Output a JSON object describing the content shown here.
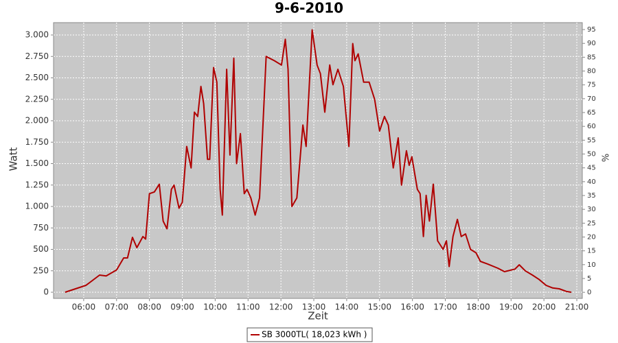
{
  "chart_data": {
    "type": "line",
    "title": "9-6-2010",
    "x_label": "Zeit",
    "y_label": "Watt",
    "y2_label": "%",
    "legend": "bottom",
    "x": [
      "05:26",
      "05:45",
      "06:04",
      "06:29",
      "06:41",
      "07:00",
      "07:13",
      "07:20",
      "07:29",
      "07:37",
      "07:48",
      "07:53",
      "08:00",
      "08:09",
      "08:18",
      "08:25",
      "08:32",
      "08:40",
      "08:45",
      "08:54",
      "09:00",
      "09:08",
      "09:16",
      "09:22",
      "09:28",
      "09:34",
      "09:39",
      "09:46",
      "09:50",
      "09:57",
      "10:03",
      "10:09",
      "10:13",
      "10:21",
      "10:27",
      "10:34",
      "10:39",
      "10:46",
      "10:53",
      "10:58",
      "11:05",
      "11:13",
      "11:21",
      "11:33",
      "11:48",
      "12:01",
      "12:08",
      "12:13",
      "12:20",
      "12:29",
      "12:40",
      "12:46",
      "12:57",
      "13:06",
      "13:12",
      "13:20",
      "13:29",
      "13:35",
      "13:44",
      "13:54",
      "14:04",
      "14:11",
      "14:15",
      "14:21",
      "14:31",
      "14:41",
      "14:51",
      "15:00",
      "15:09",
      "15:16",
      "15:25",
      "15:34",
      "15:40",
      "15:49",
      "15:54",
      "15:59",
      "16:09",
      "16:14",
      "16:20",
      "16:25",
      "16:31",
      "16:38",
      "16:46",
      "16:56",
      "17:02",
      "17:07",
      "17:14",
      "17:22",
      "17:29",
      "17:37",
      "17:46",
      "17:56",
      "18:04",
      "18:17",
      "18:36",
      "18:48",
      "19:07",
      "19:15",
      "19:26",
      "19:39",
      "19:51",
      "20:04",
      "20:16",
      "20:28",
      "20:41",
      "20:50"
    ],
    "series": [
      {
        "name": "SB 3000TL( 18,023 kWh )",
        "color": "#b00000",
        "values": [
          0,
          40,
          80,
          200,
          190,
          260,
          400,
          400,
          640,
          520,
          650,
          620,
          1150,
          1170,
          1260,
          830,
          740,
          1200,
          1250,
          980,
          1050,
          1700,
          1450,
          2100,
          2050,
          2400,
          2200,
          1550,
          1550,
          2620,
          2450,
          1200,
          900,
          2600,
          1600,
          2730,
          1500,
          1850,
          1150,
          1200,
          1100,
          900,
          1100,
          2750,
          2700,
          2650,
          2950,
          2600,
          1000,
          1100,
          1950,
          1700,
          3060,
          2650,
          2550,
          2100,
          2650,
          2420,
          2600,
          2400,
          1700,
          2900,
          2700,
          2780,
          2450,
          2450,
          2250,
          1880,
          2050,
          1950,
          1450,
          1800,
          1250,
          1650,
          1480,
          1580,
          1200,
          1150,
          650,
          1130,
          830,
          1260,
          600,
          500,
          600,
          300,
          650,
          850,
          650,
          680,
          500,
          460,
          360,
          330,
          280,
          240,
          270,
          320,
          250,
          200,
          150,
          80,
          50,
          40,
          10,
          0
        ]
      }
    ],
    "xlim": [
      "05:05",
      "21:10"
    ],
    "xticks": [
      "06:00",
      "07:00",
      "08:00",
      "09:00",
      "10:00",
      "11:00",
      "12:00",
      "13:00",
      "14:00",
      "15:00",
      "16:00",
      "17:00",
      "18:00",
      "19:00",
      "20:00",
      "21:00"
    ],
    "ylim": [
      -72,
      3144
    ],
    "yticks": [
      0,
      250,
      500,
      750,
      {
        "value": 1000,
        "label": "1.000"
      },
      {
        "value": 1250,
        "label": "1.250"
      },
      {
        "value": 1500,
        "label": "1.500"
      },
      {
        "value": 1750,
        "label": "1.750"
      },
      {
        "value": 2000,
        "label": "2.000"
      },
      {
        "value": 2250,
        "label": "2.250"
      },
      {
        "value": 2500,
        "label": "2.500"
      },
      {
        "value": 2750,
        "label": "2.750"
      },
      {
        "value": 3000,
        "label": "3.000"
      }
    ],
    "y2lim": [
      -2.2,
      97.5
    ],
    "y2ticks": [
      0,
      5,
      10,
      15,
      20,
      25,
      30,
      35,
      40,
      45,
      50,
      55,
      60,
      65,
      70,
      75,
      80,
      85,
      90,
      95
    ],
    "grid": true,
    "background": "#c8c8c8"
  }
}
